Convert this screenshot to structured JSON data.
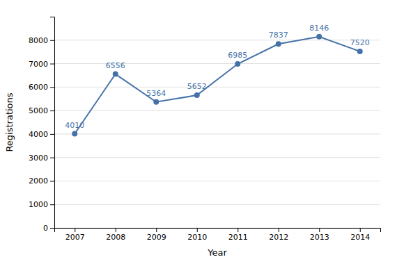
{
  "chart_data": {
    "type": "line",
    "x": [
      2007,
      2008,
      2009,
      2010,
      2011,
      2012,
      2013,
      2014
    ],
    "values": [
      4010,
      6556,
      5364,
      5652,
      6985,
      7837,
      8146,
      7520
    ],
    "color": "#4472a8",
    "marker": "circle",
    "xlabel": "Year",
    "ylabel": "Registrations",
    "xlim": [
      2006.5,
      2014.5
    ],
    "xticks": [
      2007,
      2008,
      2009,
      2010,
      2011,
      2012,
      2013,
      2014
    ],
    "ylim": [
      0,
      9000
    ],
    "yticks": [
      0,
      1000,
      2000,
      3000,
      4000,
      5000,
      6000,
      7000,
      8000
    ],
    "grid": true,
    "data_labels": true
  }
}
